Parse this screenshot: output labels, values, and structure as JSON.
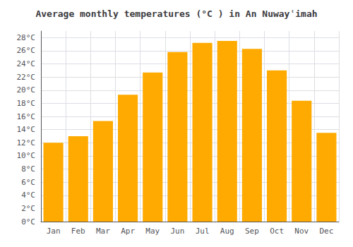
{
  "chart_data": {
    "type": "bar",
    "title": "Average monthly temperatures (°C ) in An Nuwayʿimah",
    "categories": [
      "Jan",
      "Feb",
      "Mar",
      "Apr",
      "May",
      "Jun",
      "Jul",
      "Aug",
      "Sep",
      "Oct",
      "Nov",
      "Dec"
    ],
    "values": [
      12.0,
      13.0,
      15.3,
      19.3,
      22.7,
      25.8,
      27.2,
      27.5,
      26.3,
      23.0,
      18.4,
      13.5
    ],
    "color": "#FFAA00",
    "ylim": [
      0,
      29
    ],
    "yticks": [
      {
        "value": 0,
        "label": "0°C"
      },
      {
        "value": 2,
        "label": "2°C"
      },
      {
        "value": 4,
        "label": "4°C"
      },
      {
        "value": 6,
        "label": "6°C"
      },
      {
        "value": 8,
        "label": "8°C"
      },
      {
        "value": 10,
        "label": "10°C"
      },
      {
        "value": 12,
        "label": "12°C"
      },
      {
        "value": 14,
        "label": "14°C"
      },
      {
        "value": 16,
        "label": "16°C"
      },
      {
        "value": 18,
        "label": "18°C"
      },
      {
        "value": 20,
        "label": "20°C"
      },
      {
        "value": 22,
        "label": "22°C"
      },
      {
        "value": 24,
        "label": "24°C"
      },
      {
        "value": 26,
        "label": "26°C"
      },
      {
        "value": 28,
        "label": "28°C"
      }
    ],
    "grid": true
  }
}
